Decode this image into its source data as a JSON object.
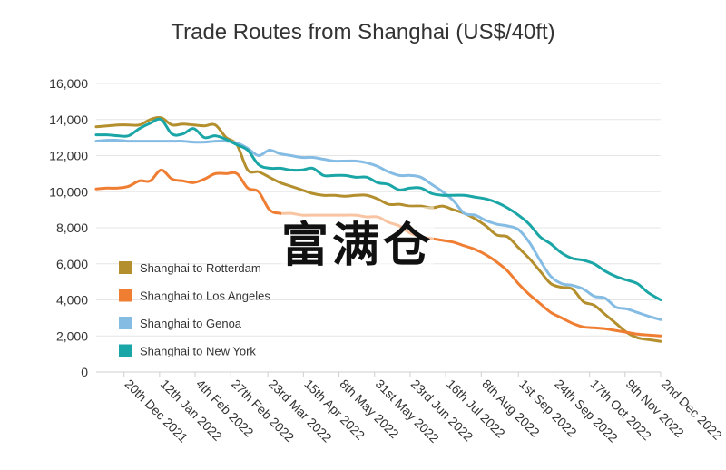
{
  "chart_data": {
    "type": "line",
    "title": "Trade Routes from Shanghai (US$/40ft)",
    "xlabel": "",
    "ylabel": "",
    "ylim": [
      0,
      16000
    ],
    "yticks": [
      0,
      2000,
      4000,
      6000,
      8000,
      10000,
      12000,
      14000,
      16000
    ],
    "ytick_labels": [
      "0",
      "2,000",
      "4,000",
      "6,000",
      "8,000",
      "10,000",
      "12,000",
      "14,000",
      "16,000"
    ],
    "xlim": [
      "2021-12-02",
      "2022-12-02"
    ],
    "xticks": [
      "2021-12-20",
      "2022-01-12",
      "2022-02-04",
      "2022-02-27",
      "2022-03-23",
      "2022-04-15",
      "2022-05-08",
      "2022-05-31",
      "2022-06-23",
      "2022-07-16",
      "2022-08-08",
      "2022-09-01",
      "2022-09-24",
      "2022-10-17",
      "2022-11-09",
      "2022-12-02"
    ],
    "xtick_labels": [
      "20th Dec 2021",
      "12th Jan 2022",
      "4th Feb 2022",
      "27th Feb 2022",
      "23rd Mar 2022",
      "15th Apr 2022",
      "8th May 2022",
      "31st May 2022",
      "23rd Jun 2022",
      "16th Jul 2022",
      "8th Aug 2022",
      "1st Sep 2022",
      "24th Sep 2022",
      "17th Oct 2022",
      "9th Nov 2022",
      "2nd Dec 2022"
    ],
    "grid": true,
    "legend_position": "bottom-left",
    "series": [
      {
        "name": "Shanghai to Rotterdam",
        "color": "#b38f2e",
        "x": [
          "2021-12-02",
          "2021-12-09",
          "2021-12-16",
          "2021-12-23",
          "2021-12-30",
          "2022-01-06",
          "2022-01-13",
          "2022-01-20",
          "2022-01-27",
          "2022-02-03",
          "2022-02-10",
          "2022-02-17",
          "2022-02-24",
          "2022-03-03",
          "2022-03-10",
          "2022-03-17",
          "2022-03-24",
          "2022-03-31",
          "2022-04-07",
          "2022-04-14",
          "2022-04-21",
          "2022-04-28",
          "2022-05-05",
          "2022-05-12",
          "2022-05-19",
          "2022-05-26",
          "2022-06-02",
          "2022-06-09",
          "2022-06-16",
          "2022-06-23",
          "2022-06-30",
          "2022-07-07",
          "2022-07-14",
          "2022-07-21",
          "2022-07-28",
          "2022-08-04",
          "2022-08-11",
          "2022-08-18",
          "2022-08-25",
          "2022-09-01",
          "2022-09-08",
          "2022-09-15",
          "2022-09-22",
          "2022-09-29",
          "2022-10-06",
          "2022-10-13",
          "2022-10-20",
          "2022-10-27",
          "2022-11-03",
          "2022-11-10",
          "2022-11-17",
          "2022-11-24",
          "2022-12-02"
        ],
        "values": [
          13600,
          13650,
          13700,
          13700,
          13700,
          14000,
          14100,
          13700,
          13750,
          13700,
          13650,
          13700,
          13000,
          12600,
          11200,
          11100,
          10800,
          10500,
          10300,
          10100,
          9900,
          9800,
          9800,
          9750,
          9800,
          9800,
          9600,
          9300,
          9300,
          9200,
          9200,
          9100,
          9200,
          9000,
          8800,
          8500,
          8100,
          7600,
          7500,
          6900,
          6300,
          5600,
          4900,
          4700,
          4600,
          3900,
          3700,
          3200,
          2700,
          2200,
          1900,
          1800,
          1700
        ]
      },
      {
        "name": "Shanghai to Los Angeles",
        "color": "#ef7d32",
        "x": [
          "2021-12-02",
          "2021-12-09",
          "2021-12-16",
          "2021-12-23",
          "2021-12-30",
          "2022-01-06",
          "2022-01-13",
          "2022-01-20",
          "2022-01-27",
          "2022-02-03",
          "2022-02-10",
          "2022-02-17",
          "2022-02-24",
          "2022-03-03",
          "2022-03-10",
          "2022-03-17",
          "2022-03-24",
          "2022-03-31",
          "2022-04-07",
          "2022-04-14",
          "2022-04-21",
          "2022-04-28",
          "2022-05-05",
          "2022-05-12",
          "2022-05-19",
          "2022-05-26",
          "2022-06-02",
          "2022-06-09",
          "2022-06-16",
          "2022-06-23",
          "2022-06-30",
          "2022-07-07",
          "2022-07-14",
          "2022-07-21",
          "2022-07-28",
          "2022-08-04",
          "2022-08-11",
          "2022-08-18",
          "2022-08-25",
          "2022-09-01",
          "2022-09-08",
          "2022-09-15",
          "2022-09-22",
          "2022-09-29",
          "2022-10-06",
          "2022-10-13",
          "2022-10-20",
          "2022-10-27",
          "2022-11-03",
          "2022-11-10",
          "2022-11-17",
          "2022-11-24",
          "2022-12-02"
        ],
        "values": [
          10150,
          10200,
          10200,
          10300,
          10600,
          10600,
          11200,
          10700,
          10600,
          10500,
          10700,
          11000,
          11000,
          11000,
          10200,
          10000,
          9000,
          8800,
          8800,
          8700,
          8700,
          8700,
          8700,
          8700,
          8700,
          8600,
          8600,
          8300,
          8100,
          7700,
          7500,
          7400,
          7300,
          7200,
          7000,
          6800,
          6500,
          6100,
          5600,
          4900,
          4300,
          3800,
          3300,
          3000,
          2700,
          2500,
          2450,
          2400,
          2300,
          2200,
          2100,
          2050,
          2000
        ]
      },
      {
        "name": "Shanghai to Genoa",
        "color": "#85bce4",
        "x": [
          "2021-12-02",
          "2021-12-09",
          "2021-12-16",
          "2021-12-23",
          "2021-12-30",
          "2022-01-06",
          "2022-01-13",
          "2022-01-20",
          "2022-01-27",
          "2022-02-03",
          "2022-02-10",
          "2022-02-17",
          "2022-02-24",
          "2022-03-03",
          "2022-03-10",
          "2022-03-17",
          "2022-03-24",
          "2022-03-31",
          "2022-04-07",
          "2022-04-14",
          "2022-04-21",
          "2022-04-28",
          "2022-05-05",
          "2022-05-12",
          "2022-05-19",
          "2022-05-26",
          "2022-06-02",
          "2022-06-09",
          "2022-06-16",
          "2022-06-23",
          "2022-06-30",
          "2022-07-07",
          "2022-07-14",
          "2022-07-21",
          "2022-07-28",
          "2022-08-04",
          "2022-08-11",
          "2022-08-18",
          "2022-08-25",
          "2022-09-01",
          "2022-09-08",
          "2022-09-15",
          "2022-09-22",
          "2022-09-29",
          "2022-10-06",
          "2022-10-13",
          "2022-10-20",
          "2022-10-27",
          "2022-11-03",
          "2022-11-10",
          "2022-11-17",
          "2022-11-24",
          "2022-12-02"
        ],
        "values": [
          12800,
          12850,
          12850,
          12800,
          12800,
          12800,
          12800,
          12800,
          12800,
          12750,
          12750,
          12800,
          12800,
          12700,
          12400,
          12000,
          12300,
          12100,
          12000,
          11900,
          11900,
          11800,
          11700,
          11700,
          11700,
          11600,
          11400,
          11100,
          10900,
          10900,
          10800,
          10400,
          10000,
          9500,
          8800,
          8700,
          8400,
          8200,
          8100,
          7900,
          7200,
          6200,
          5300,
          4900,
          4800,
          4600,
          4200,
          4100,
          3600,
          3500,
          3300,
          3100,
          2900
        ]
      },
      {
        "name": "Shanghai to New York",
        "color": "#1aa5a6",
        "x": [
          "2021-12-02",
          "2021-12-09",
          "2021-12-16",
          "2021-12-23",
          "2021-12-30",
          "2022-01-06",
          "2022-01-13",
          "2022-01-20",
          "2022-01-27",
          "2022-02-03",
          "2022-02-10",
          "2022-02-17",
          "2022-02-24",
          "2022-03-03",
          "2022-03-10",
          "2022-03-17",
          "2022-03-24",
          "2022-03-31",
          "2022-04-07",
          "2022-04-14",
          "2022-04-21",
          "2022-04-28",
          "2022-05-05",
          "2022-05-12",
          "2022-05-19",
          "2022-05-26",
          "2022-06-02",
          "2022-06-09",
          "2022-06-16",
          "2022-06-23",
          "2022-06-30",
          "2022-07-07",
          "2022-07-14",
          "2022-07-21",
          "2022-07-28",
          "2022-08-04",
          "2022-08-11",
          "2022-08-18",
          "2022-08-25",
          "2022-09-01",
          "2022-09-08",
          "2022-09-15",
          "2022-09-22",
          "2022-09-29",
          "2022-10-06",
          "2022-10-13",
          "2022-10-20",
          "2022-10-27",
          "2022-11-03",
          "2022-11-10",
          "2022-11-17",
          "2022-11-24",
          "2022-12-02"
        ],
        "values": [
          13150,
          13150,
          13100,
          13100,
          13500,
          13800,
          14000,
          13200,
          13200,
          13500,
          13000,
          13100,
          12900,
          12600,
          12300,
          11500,
          11300,
          11300,
          11200,
          11200,
          11300,
          10900,
          10900,
          10900,
          10800,
          10800,
          10500,
          10400,
          10100,
          10200,
          10200,
          9900,
          9800,
          9800,
          9800,
          9700,
          9600,
          9400,
          9100,
          8700,
          8200,
          7500,
          7100,
          6600,
          6300,
          6200,
          6000,
          5600,
          5300,
          5100,
          4900,
          4400,
          4000
        ]
      }
    ]
  },
  "watermark": {
    "text": "富满仓"
  }
}
